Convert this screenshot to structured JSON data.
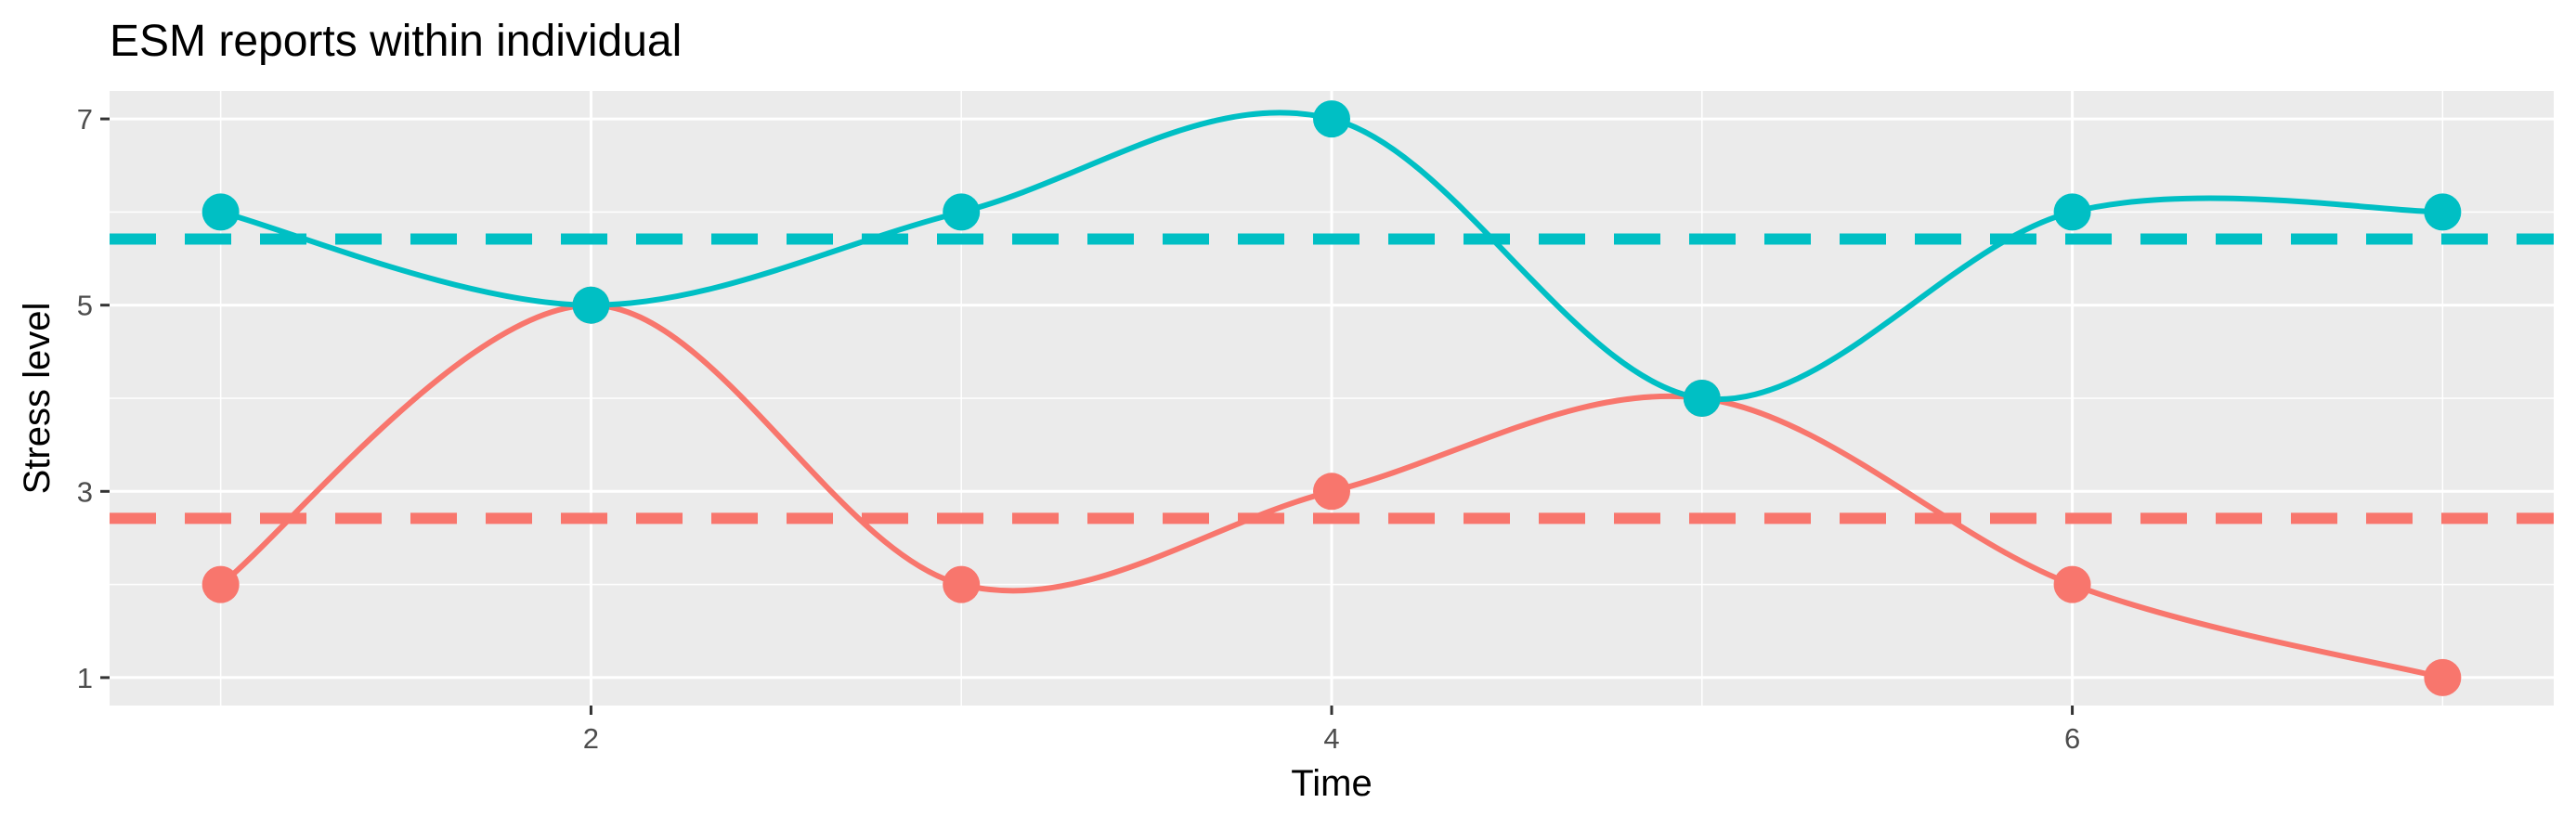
{
  "chart_data": {
    "type": "line",
    "title": "ESM reports within individual",
    "xlabel": "Time",
    "ylabel": "Stress level",
    "xlim": [
      0.7,
      7.3
    ],
    "ylim": [
      0.7,
      7.3
    ],
    "x_ticks": [
      2,
      4,
      6
    ],
    "y_ticks": [
      1,
      3,
      5,
      7
    ],
    "grid": true,
    "legend": "none",
    "x": [
      1,
      2,
      3,
      4,
      5,
      6,
      7
    ],
    "series": [
      {
        "values": [
          2,
          5,
          2,
          3,
          4,
          2,
          1
        ],
        "color": "#F8766D",
        "mean": 2.71
      },
      {
        "values": [
          6,
          5,
          6,
          7,
          4,
          6,
          6
        ],
        "color": "#00BFC4",
        "mean": 5.71
      }
    ],
    "panel_background": "#EBEBEB",
    "grid_color": "#FFFFFF"
  }
}
